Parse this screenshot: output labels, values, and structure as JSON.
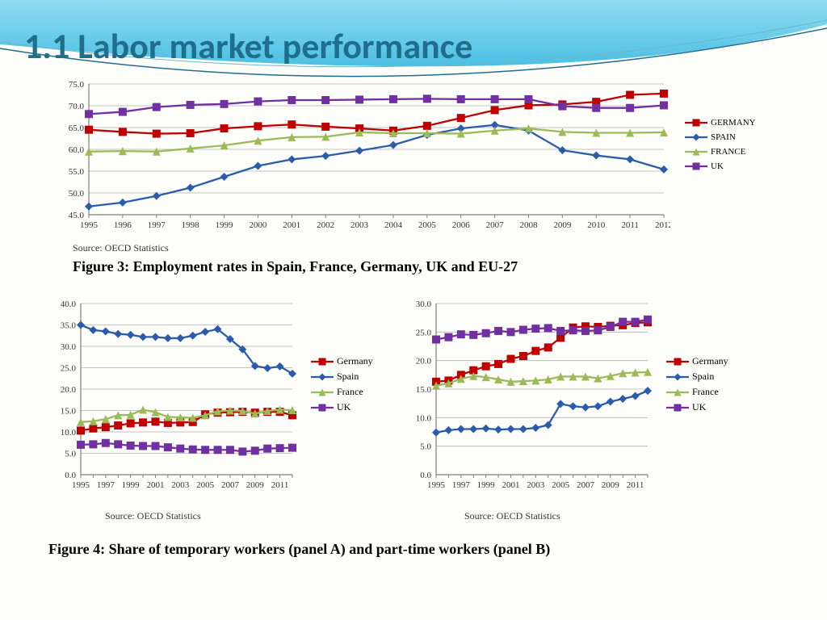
{
  "title": {
    "text": "1.1 Labor market performance",
    "color": "#1f6e8c",
    "fontsize": 44
  },
  "swoosh": {
    "fill": "#5bc8e8",
    "border": "#1f6e8c"
  },
  "source_text": "Source: OECD Statistics",
  "source_fontsize": 12,
  "source_color": "#333333",
  "caption_fontsize": 18,
  "caption_color": "#000000",
  "caption3": "Figure 3: Employment rates in Spain, France, Germany, UK and EU-27",
  "caption4": "Figure 4: Share of temporary workers (panel A) and part-time workers (panel B)",
  "series_colors": {
    "germany": "#c00000",
    "spain": "#2a5caa",
    "france": "#9bbb59",
    "uk": "#7030a0"
  },
  "series_labels_upper": {
    "germany": "GERMANY",
    "spain": "SPAIN",
    "france": "FRANCE",
    "uk": "UK"
  },
  "series_labels_mixed": {
    "germany": "Germany",
    "spain": "Spain",
    "france": "France",
    "uk": "UK"
  },
  "chart_style": {
    "axis_color": "#7f7f7f",
    "grid_color": "#b0b0b0",
    "tick_font": 11,
    "line_width": 2.3,
    "marker_size": 5,
    "markers": {
      "germany": "square",
      "spain": "diamond",
      "france": "triangle",
      "uk": "square"
    },
    "background": "#ffffff00"
  },
  "years_full": [
    1995,
    1996,
    1997,
    1998,
    1999,
    2000,
    2001,
    2002,
    2003,
    2004,
    2005,
    2006,
    2007,
    2008,
    2009,
    2010,
    2011,
    2012
  ],
  "years_panels_ticklabels": [
    1995,
    1997,
    1999,
    2001,
    2003,
    2005,
    2007,
    2009,
    2011
  ],
  "fig3": {
    "type": "line",
    "ylim": [
      45.0,
      75.0
    ],
    "ytick_step": 5.0,
    "xtick_labels": [
      1995,
      1996,
      1997,
      1998,
      1999,
      2000,
      2001,
      2002,
      2003,
      2004,
      2005,
      2006,
      2007,
      2008,
      2009,
      2010,
      2011,
      2012
    ],
    "series": {
      "germany": [
        64.5,
        64.0,
        63.6,
        63.7,
        64.8,
        65.3,
        65.7,
        65.2,
        64.8,
        64.3,
        65.4,
        67.2,
        69.0,
        70.1,
        70.3,
        70.9,
        72.5,
        72.8
      ],
      "spain": [
        46.9,
        47.8,
        49.3,
        51.2,
        53.7,
        56.2,
        57.7,
        58.5,
        59.7,
        61.0,
        63.3,
        64.8,
        65.6,
        64.3,
        59.8,
        58.6,
        57.7,
        55.4
      ],
      "france": [
        59.5,
        59.6,
        59.5,
        60.2,
        60.9,
        62.0,
        62.8,
        62.9,
        63.9,
        63.7,
        63.7,
        63.6,
        64.3,
        64.8,
        64.0,
        63.8,
        63.8,
        63.9
      ],
      "uk": [
        68.1,
        68.6,
        69.7,
        70.2,
        70.4,
        71.0,
        71.3,
        71.3,
        71.4,
        71.5,
        71.6,
        71.5,
        71.5,
        71.5,
        69.9,
        69.5,
        69.5,
        70.1
      ]
    },
    "legend_order": [
      "germany",
      "spain",
      "france",
      "uk"
    ],
    "legend_fontsize": 11
  },
  "figA": {
    "type": "line",
    "ylim": [
      0.0,
      40.0
    ],
    "ytick_step": 5.0,
    "xtick_labels": [
      1995,
      1997,
      1999,
      2001,
      2003,
      2005,
      2007,
      2009,
      2011
    ],
    "series": {
      "germany": [
        10.3,
        10.8,
        11.1,
        11.5,
        12.0,
        12.2,
        12.4,
        12.1,
        12.2,
        12.3,
        14.1,
        14.5,
        14.6,
        14.7,
        14.5,
        14.7,
        14.7,
        13.9
      ],
      "spain": [
        35.0,
        33.8,
        33.5,
        32.9,
        32.7,
        32.2,
        32.2,
        31.9,
        31.9,
        32.5,
        33.4,
        34.0,
        31.7,
        29.3,
        25.4,
        24.9,
        25.3,
        23.6
      ],
      "france": [
        12.3,
        12.5,
        13.0,
        13.9,
        14.0,
        15.2,
        14.6,
        13.5,
        13.4,
        13.3,
        13.9,
        14.8,
        15.0,
        14.9,
        14.3,
        14.9,
        15.2,
        15.1
      ],
      "uk": [
        7.0,
        7.1,
        7.4,
        7.1,
        6.8,
        6.7,
        6.7,
        6.4,
        6.1,
        5.9,
        5.8,
        5.8,
        5.8,
        5.4,
        5.6,
        6.1,
        6.2,
        6.3
      ]
    },
    "legend_order": [
      "germany",
      "spain",
      "france",
      "uk"
    ],
    "legend_fontsize": 12
  },
  "figB": {
    "type": "line",
    "ylim": [
      0.0,
      30.0
    ],
    "ytick_step": 5.0,
    "xtick_labels": [
      1995,
      1997,
      1999,
      2001,
      2003,
      2005,
      2007,
      2009,
      2011
    ],
    "series": {
      "germany": [
        16.3,
        16.5,
        17.5,
        18.3,
        19.0,
        19.4,
        20.3,
        20.8,
        21.7,
        22.3,
        24.0,
        25.8,
        26.0,
        25.9,
        26.1,
        26.2,
        26.6,
        26.7
      ],
      "spain": [
        7.4,
        7.8,
        8.0,
        8.0,
        8.1,
        7.9,
        8.0,
        8.0,
        8.2,
        8.7,
        12.4,
        12.0,
        11.8,
        12.0,
        12.8,
        13.3,
        13.8,
        14.7
      ],
      "france": [
        15.6,
        16.0,
        16.8,
        17.3,
        17.1,
        16.7,
        16.3,
        16.4,
        16.5,
        16.7,
        17.2,
        17.2,
        17.2,
        16.9,
        17.3,
        17.8,
        17.9,
        18.0
      ],
      "uk": [
        23.7,
        24.1,
        24.6,
        24.5,
        24.8,
        25.2,
        25.0,
        25.4,
        25.6,
        25.7,
        25.2,
        25.3,
        25.2,
        25.3,
        25.9,
        26.8,
        26.8,
        27.2
      ]
    },
    "legend_order": [
      "germany",
      "spain",
      "france",
      "uk"
    ],
    "legend_fontsize": 12
  }
}
